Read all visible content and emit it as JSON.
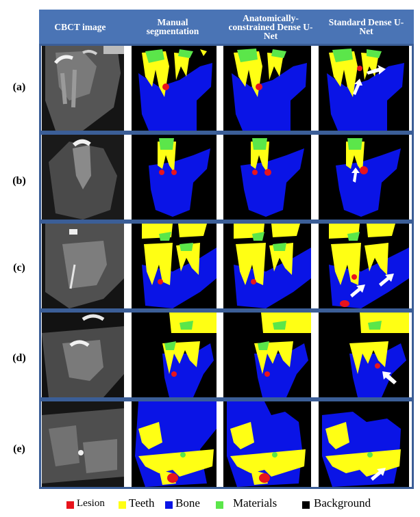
{
  "header": {
    "col1": "CBCT image",
    "col2": "Manual segmentation",
    "col3": "Anatomically-constrained Dense U-Net",
    "col4": "Standard Dense U-Net"
  },
  "rows": [
    {
      "label": "(a)"
    },
    {
      "label": "(b)"
    },
    {
      "label": "(c)"
    },
    {
      "label": "(d)"
    },
    {
      "label": "(e)"
    }
  ],
  "legend": {
    "lesion": "Lesion",
    "teeth": "Teeth",
    "bone": "Bone",
    "materials": "Materials",
    "background": "Background"
  },
  "colors": {
    "lesion": "#e8141c",
    "teeth": "#ffff14",
    "bone": "#0a14e6",
    "materials": "#5be64a",
    "background": "#000000",
    "header": "#4a74b5",
    "frame": "#3b5e97"
  }
}
